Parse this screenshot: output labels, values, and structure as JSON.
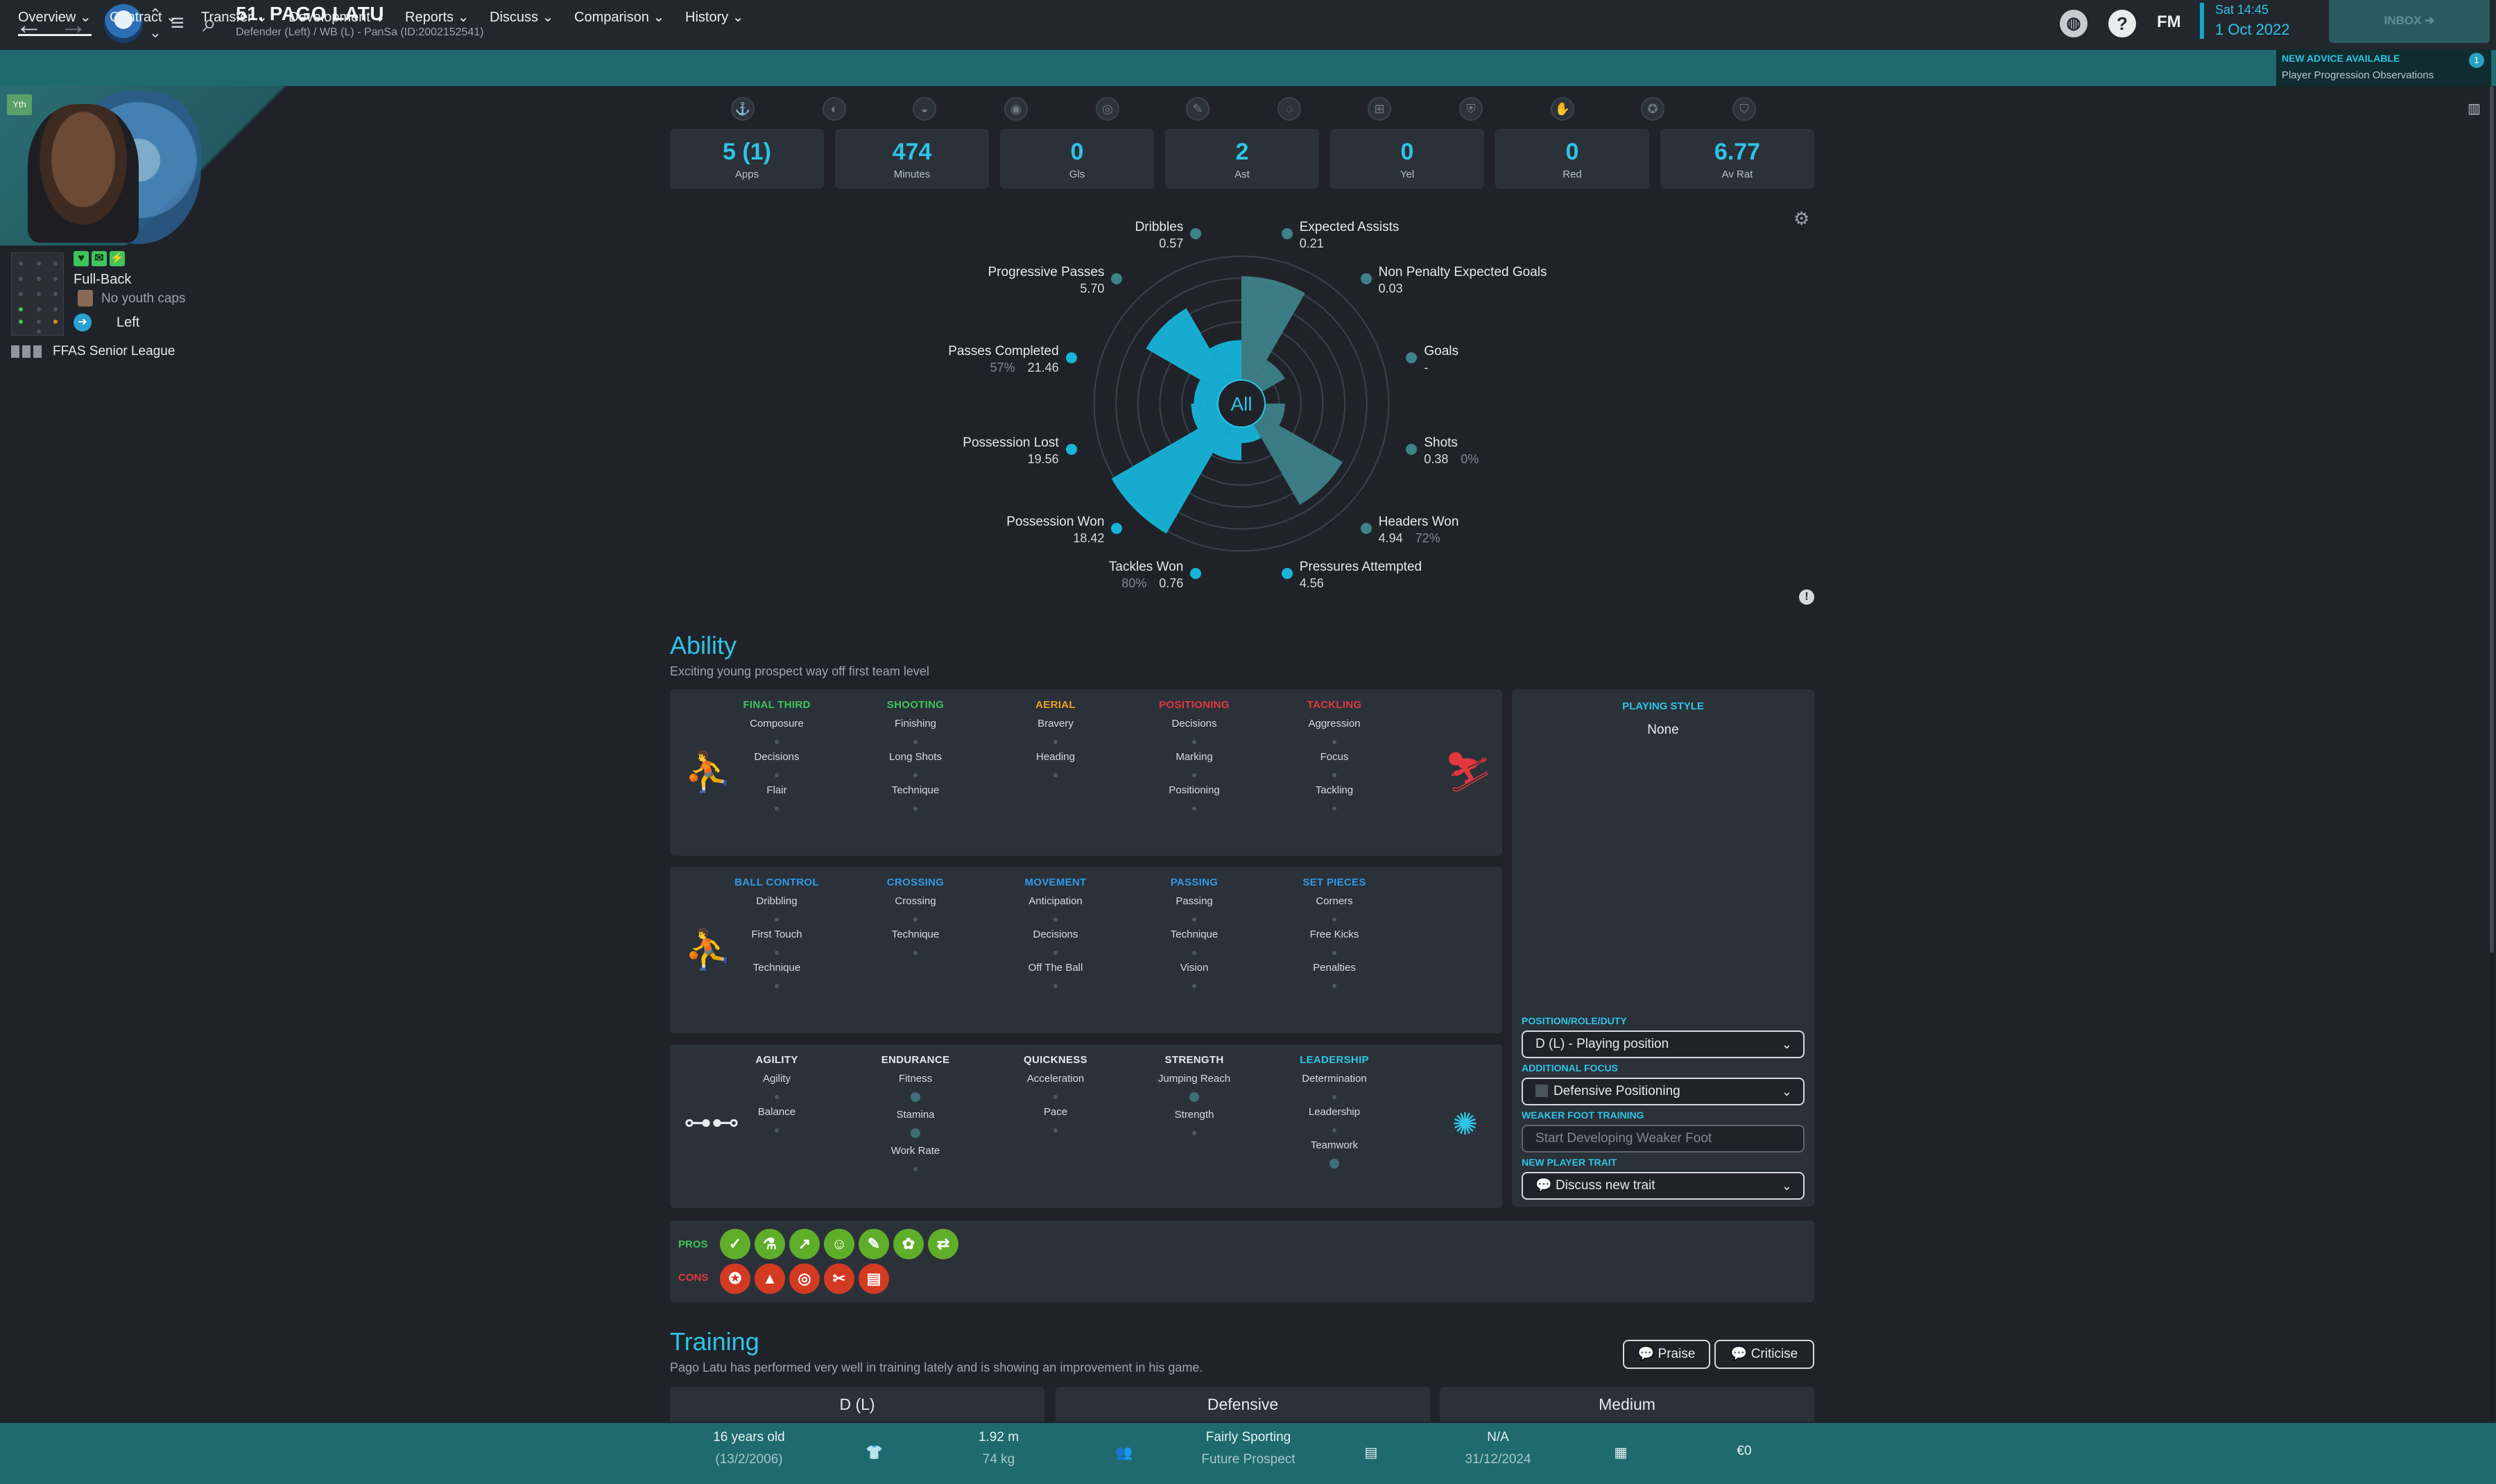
{
  "header": {
    "player_name": "51. PAGO LATU",
    "player_sub": "Defender (Left) / WB (L) - PanSa (ID:2002152541)",
    "fm_label": "FM",
    "time": "Sat 14:45",
    "date": "1 Oct 2022",
    "inbox_label": "INBOX"
  },
  "nav": {
    "items": [
      "Overview",
      "Contract",
      "Transfer",
      "Development",
      "Reports",
      "Discuss",
      "Comparison",
      "History"
    ]
  },
  "advice": {
    "title": "NEW ADVICE AVAILABLE",
    "text": "Player Progression Observations",
    "count": "1"
  },
  "profile": {
    "badge": "Yth",
    "position": "Full-Back",
    "caps": "No youth caps",
    "foot": "Left",
    "league": "FFAS Senior League"
  },
  "stats": [
    {
      "value": "5 (1)",
      "label": "Apps"
    },
    {
      "value": "474",
      "label": "Minutes"
    },
    {
      "value": "0",
      "label": "Gls"
    },
    {
      "value": "2",
      "label": "Ast"
    },
    {
      "value": "0",
      "label": "Yel"
    },
    {
      "value": "0",
      "label": "Red"
    },
    {
      "value": "6.77",
      "label": "Av Rat"
    }
  ],
  "radar": {
    "center_label": "All",
    "metrics": [
      {
        "label": "Expected Assists",
        "value": "0.21",
        "sub": "",
        "level": 0.78
      },
      {
        "label": "Non Penalty Expected Goals",
        "value": "0.03",
        "sub": "",
        "level": 0.2
      },
      {
        "label": "Goals",
        "value": "-",
        "sub": "",
        "level": 0.0
      },
      {
        "label": "Shots",
        "value": "0.38",
        "sub": "0%",
        "level": 0.15
      },
      {
        "label": "Headers Won",
        "value": "4.94",
        "sub": "72%",
        "level": 0.7
      },
      {
        "label": "Pressures Attempted",
        "value": "4.56",
        "sub": "",
        "level": 0.12
      },
      {
        "label": "Tackles Won",
        "value": "0.76",
        "sub": "80%",
        "level": 0.25
      },
      {
        "label": "Possession Won",
        "value": "18.42",
        "sub": "",
        "level": 0.95
      },
      {
        "label": "Possession Lost",
        "value": "19.56",
        "sub": "",
        "level": 0.2
      },
      {
        "label": "Passes Completed",
        "value": "21.46",
        "sub": "57%",
        "level": 0.18
      },
      {
        "label": "Progressive Passes",
        "value": "5.70",
        "sub": "",
        "level": 0.65
      },
      {
        "label": "Dribbles",
        "value": "0.57",
        "sub": "",
        "level": 0.3
      }
    ]
  },
  "ability": {
    "title": "Ability",
    "subtitle": "Exciting young prospect way off first team level",
    "panels": [
      {
        "groups": [
          {
            "head": "FINAL THIRD",
            "color": "#3ec45a",
            "attrs": [
              "Composure",
              "Decisions",
              "Flair"
            ]
          },
          {
            "head": "SHOOTING",
            "color": "#3ec45a",
            "attrs": [
              "Finishing",
              "Long Shots",
              "Technique"
            ]
          },
          {
            "head": "AERIAL",
            "color": "#f0a020",
            "attrs": [
              "Bravery",
              "Heading",
              ""
            ]
          },
          {
            "head": "POSITIONING",
            "color": "#e2373f",
            "attrs": [
              "Decisions",
              "Marking",
              "Positioning"
            ]
          },
          {
            "head": "TACKLING",
            "color": "#e2373f",
            "attrs": [
              "Aggression",
              "Focus",
              "Tackling"
            ]
          }
        ]
      },
      {
        "groups": [
          {
            "head": "BALL CONTROL",
            "color": "#2f9ae8",
            "attrs": [
              "Dribbling",
              "First Touch",
              "Technique"
            ]
          },
          {
            "head": "CROSSING",
            "color": "#2f9ae8",
            "attrs": [
              "Crossing",
              "Technique",
              ""
            ]
          },
          {
            "head": "MOVEMENT",
            "color": "#2f9ae8",
            "attrs": [
              "Anticipation",
              "Decisions",
              "Off The Ball"
            ]
          },
          {
            "head": "PASSING",
            "color": "#2f9ae8",
            "attrs": [
              "Passing",
              "Technique",
              "Vision"
            ]
          },
          {
            "head": "SET PIECES",
            "color": "#2f9ae8",
            "attrs": [
              "Corners",
              "Free Kicks",
              "Penalties"
            ]
          }
        ]
      },
      {
        "groups": [
          {
            "head": "AGILITY",
            "color": "#e5e9ee",
            "attrs": [
              "Agility",
              "Balance",
              ""
            ]
          },
          {
            "head": "ENDURANCE",
            "color": "#e5e9ee",
            "attrs": [
              "Fitness",
              "Stamina",
              "Work Rate"
            ]
          },
          {
            "head": "QUICKNESS",
            "color": "#e5e9ee",
            "attrs": [
              "Acceleration",
              "Pace",
              ""
            ]
          },
          {
            "head": "STRENGTH",
            "color": "#e5e9ee",
            "attrs": [
              "Jumping Reach",
              "Strength",
              ""
            ]
          },
          {
            "head": "LEADERSHIP",
            "color": "#2ec4e6",
            "attrs": [
              "Determination",
              "Leadership",
              "Teamwork"
            ]
          }
        ]
      }
    ]
  },
  "playing_style": {
    "title": "PLAYING STYLE",
    "value": "None",
    "position_label": "POSITION/ROLE/DUTY",
    "position_value": "D (L) - Playing position",
    "focus_label": "ADDITIONAL FOCUS",
    "focus_value": "Defensive Positioning",
    "weak_label": "WEAKER FOOT TRAINING",
    "weak_value": "Start Developing Weaker Foot",
    "trait_label": "NEW PLAYER TRAIT",
    "trait_value": "Discuss new trait"
  },
  "pros_cons": {
    "pros_label": "PROS",
    "cons_label": "CONS",
    "pros": [
      "boot-icon",
      "flask-icon",
      "trend-icon",
      "head-icon",
      "pen-icon",
      "flower-icon",
      "handshake-icon"
    ],
    "cons": [
      "medal-icon",
      "cone-icon",
      "target-icon",
      "scissors-icon",
      "book-icon"
    ]
  },
  "training": {
    "title": "Training",
    "subtitle": "Pago Latu has performed very well in training lately and is showing an improvement in his game.",
    "praise": "Praise",
    "criticise": "Criticise",
    "tabs": [
      "D (L)",
      "Defensive",
      "Medium"
    ]
  },
  "footer": {
    "age": "16 years old",
    "dob": "(13/2/2006)",
    "height": "1.92 m",
    "weight": "74 kg",
    "personality": "Fairly Sporting",
    "status": "Future Prospect",
    "contract": "N/A",
    "contract_date": "31/12/2024",
    "value": "€0"
  }
}
